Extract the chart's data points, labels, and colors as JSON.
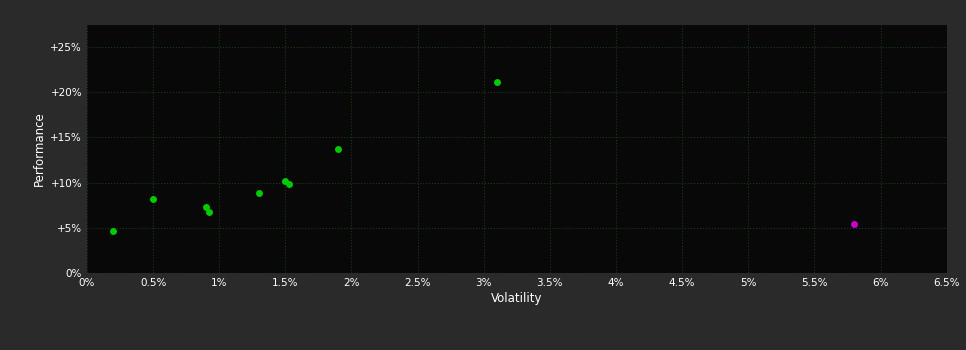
{
  "background_color": "#2a2a2a",
  "plot_bg_color": "#080808",
  "grid_color": "#1a3a1a",
  "xlabel": "Volatility",
  "ylabel": "Performance",
  "xlim": [
    0,
    0.065
  ],
  "ylim": [
    0,
    0.275
  ],
  "xticks": [
    0,
    0.005,
    0.01,
    0.015,
    0.02,
    0.025,
    0.03,
    0.035,
    0.04,
    0.045,
    0.05,
    0.055,
    0.06,
    0.065
  ],
  "yticks": [
    0,
    0.05,
    0.1,
    0.15,
    0.2,
    0.25
  ],
  "ytick_labels": [
    "0%",
    "+5%",
    "+10%",
    "+15%",
    "+20%",
    "+25%"
  ],
  "xtick_labels": [
    "0%",
    "0.5%",
    "1%",
    "1.5%",
    "2%",
    "2.5%",
    "3%",
    "3.5%",
    "4%",
    "4.5%",
    "5%",
    "5.5%",
    "6%",
    "6.5%"
  ],
  "green_points": [
    [
      0.002,
      0.046
    ],
    [
      0.005,
      0.082
    ],
    [
      0.009,
      0.073
    ],
    [
      0.0092,
      0.068
    ],
    [
      0.013,
      0.088
    ],
    [
      0.015,
      0.102
    ],
    [
      0.0153,
      0.099
    ],
    [
      0.019,
      0.137
    ],
    [
      0.031,
      0.211
    ]
  ],
  "magenta_points": [
    [
      0.058,
      0.054
    ]
  ],
  "green_color": "#00cc00",
  "magenta_color": "#cc00cc",
  "marker_size": 5,
  "label_color": "#ffffff",
  "tick_color": "#ffffff"
}
